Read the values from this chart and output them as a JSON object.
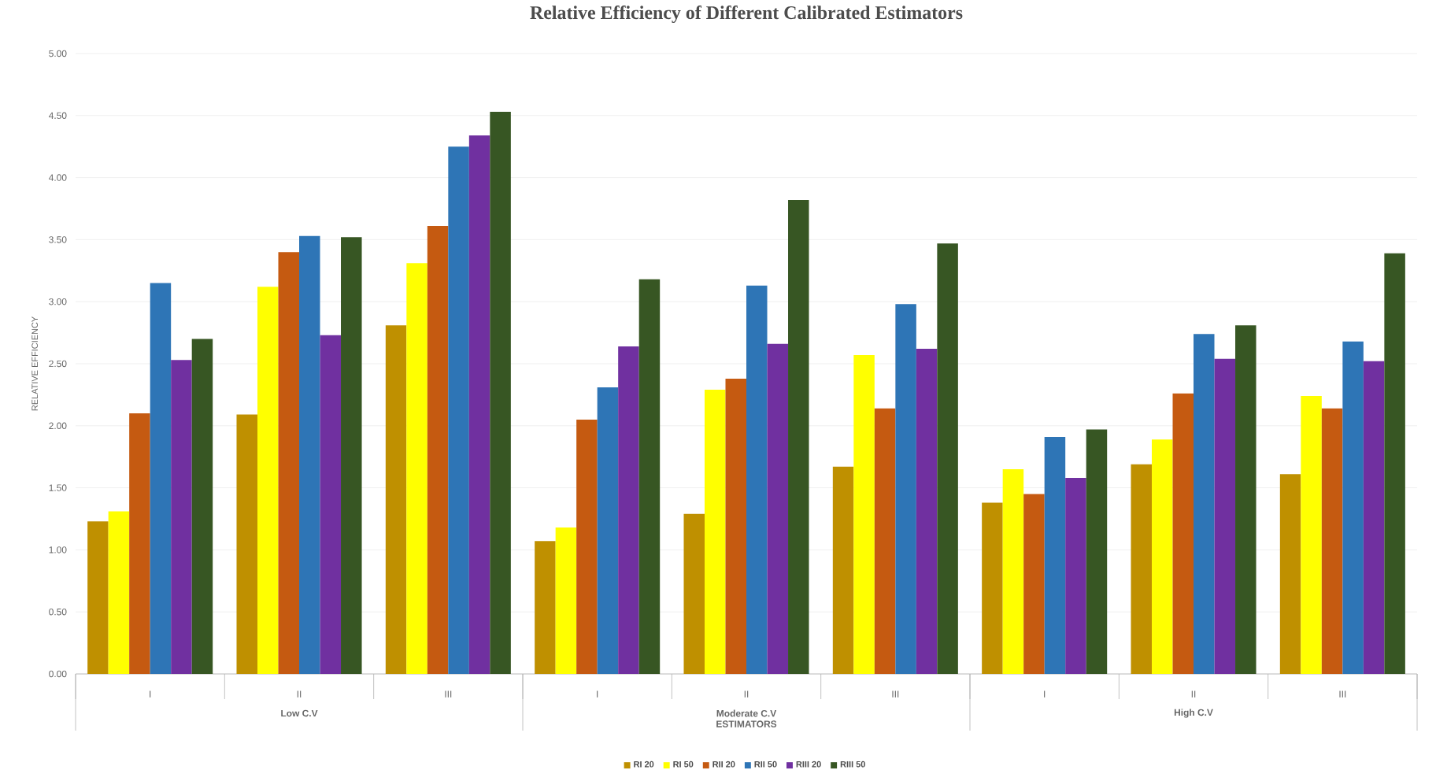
{
  "chart_data": {
    "type": "bar",
    "title": "Relative Efficiency of Different Calibrated Estimators",
    "xlabel": "ESTIMATORS",
    "ylabel": "RELATIVE EFFICIENCY",
    "categories": [
      "I",
      "II",
      "III",
      "I",
      "II",
      "III",
      "I",
      "II",
      "III"
    ],
    "annotations": [
      "Low C.V",
      "Moderate C.V",
      "High C.V"
    ],
    "series": [
      {
        "name": "RI 20",
        "color": "#bf9000",
        "values": [
          1.23,
          2.09,
          2.81,
          1.07,
          1.29,
          1.67,
          1.38,
          1.69,
          1.61
        ]
      },
      {
        "name": "RI 50",
        "color": "#ffff00",
        "values": [
          1.31,
          3.12,
          3.31,
          1.18,
          2.29,
          2.57,
          1.65,
          1.89,
          2.24
        ]
      },
      {
        "name": "RII 20",
        "color": "#c55a11",
        "values": [
          2.1,
          3.4,
          3.61,
          2.05,
          2.38,
          2.14,
          1.45,
          2.26,
          2.14
        ]
      },
      {
        "name": "RII 50",
        "color": "#2e75b6",
        "values": [
          3.15,
          3.53,
          4.25,
          2.31,
          3.13,
          2.98,
          1.91,
          2.74,
          2.68
        ]
      },
      {
        "name": "RIII 20",
        "color": "#7030a0",
        "values": [
          2.53,
          2.73,
          4.34,
          2.64,
          2.66,
          2.62,
          1.58,
          2.54,
          2.52
        ]
      },
      {
        "name": "RIII 50",
        "color": "#375623",
        "values": [
          2.7,
          3.52,
          4.53,
          3.18,
          3.82,
          3.47,
          1.97,
          2.81,
          3.39
        ]
      }
    ],
    "ylim": [
      0,
      5
    ],
    "yticks": [
      {
        "value": 0,
        "label": "0.00"
      },
      {
        "value": 0.5,
        "label": "0.50"
      },
      {
        "value": 1,
        "label": "1.00"
      },
      {
        "value": 1.5,
        "label": "1.50"
      },
      {
        "value": 2,
        "label": "2.00"
      },
      {
        "value": 2.5,
        "label": "2.50"
      },
      {
        "value": 3,
        "label": "3.00"
      },
      {
        "value": 3.5,
        "label": "3.50"
      },
      {
        "value": 4,
        "label": "4.00"
      },
      {
        "value": 4.5,
        "label": "4.50"
      },
      {
        "value": 5,
        "label": "5.00"
      }
    ],
    "grid": "y",
    "legend": "bottom"
  }
}
